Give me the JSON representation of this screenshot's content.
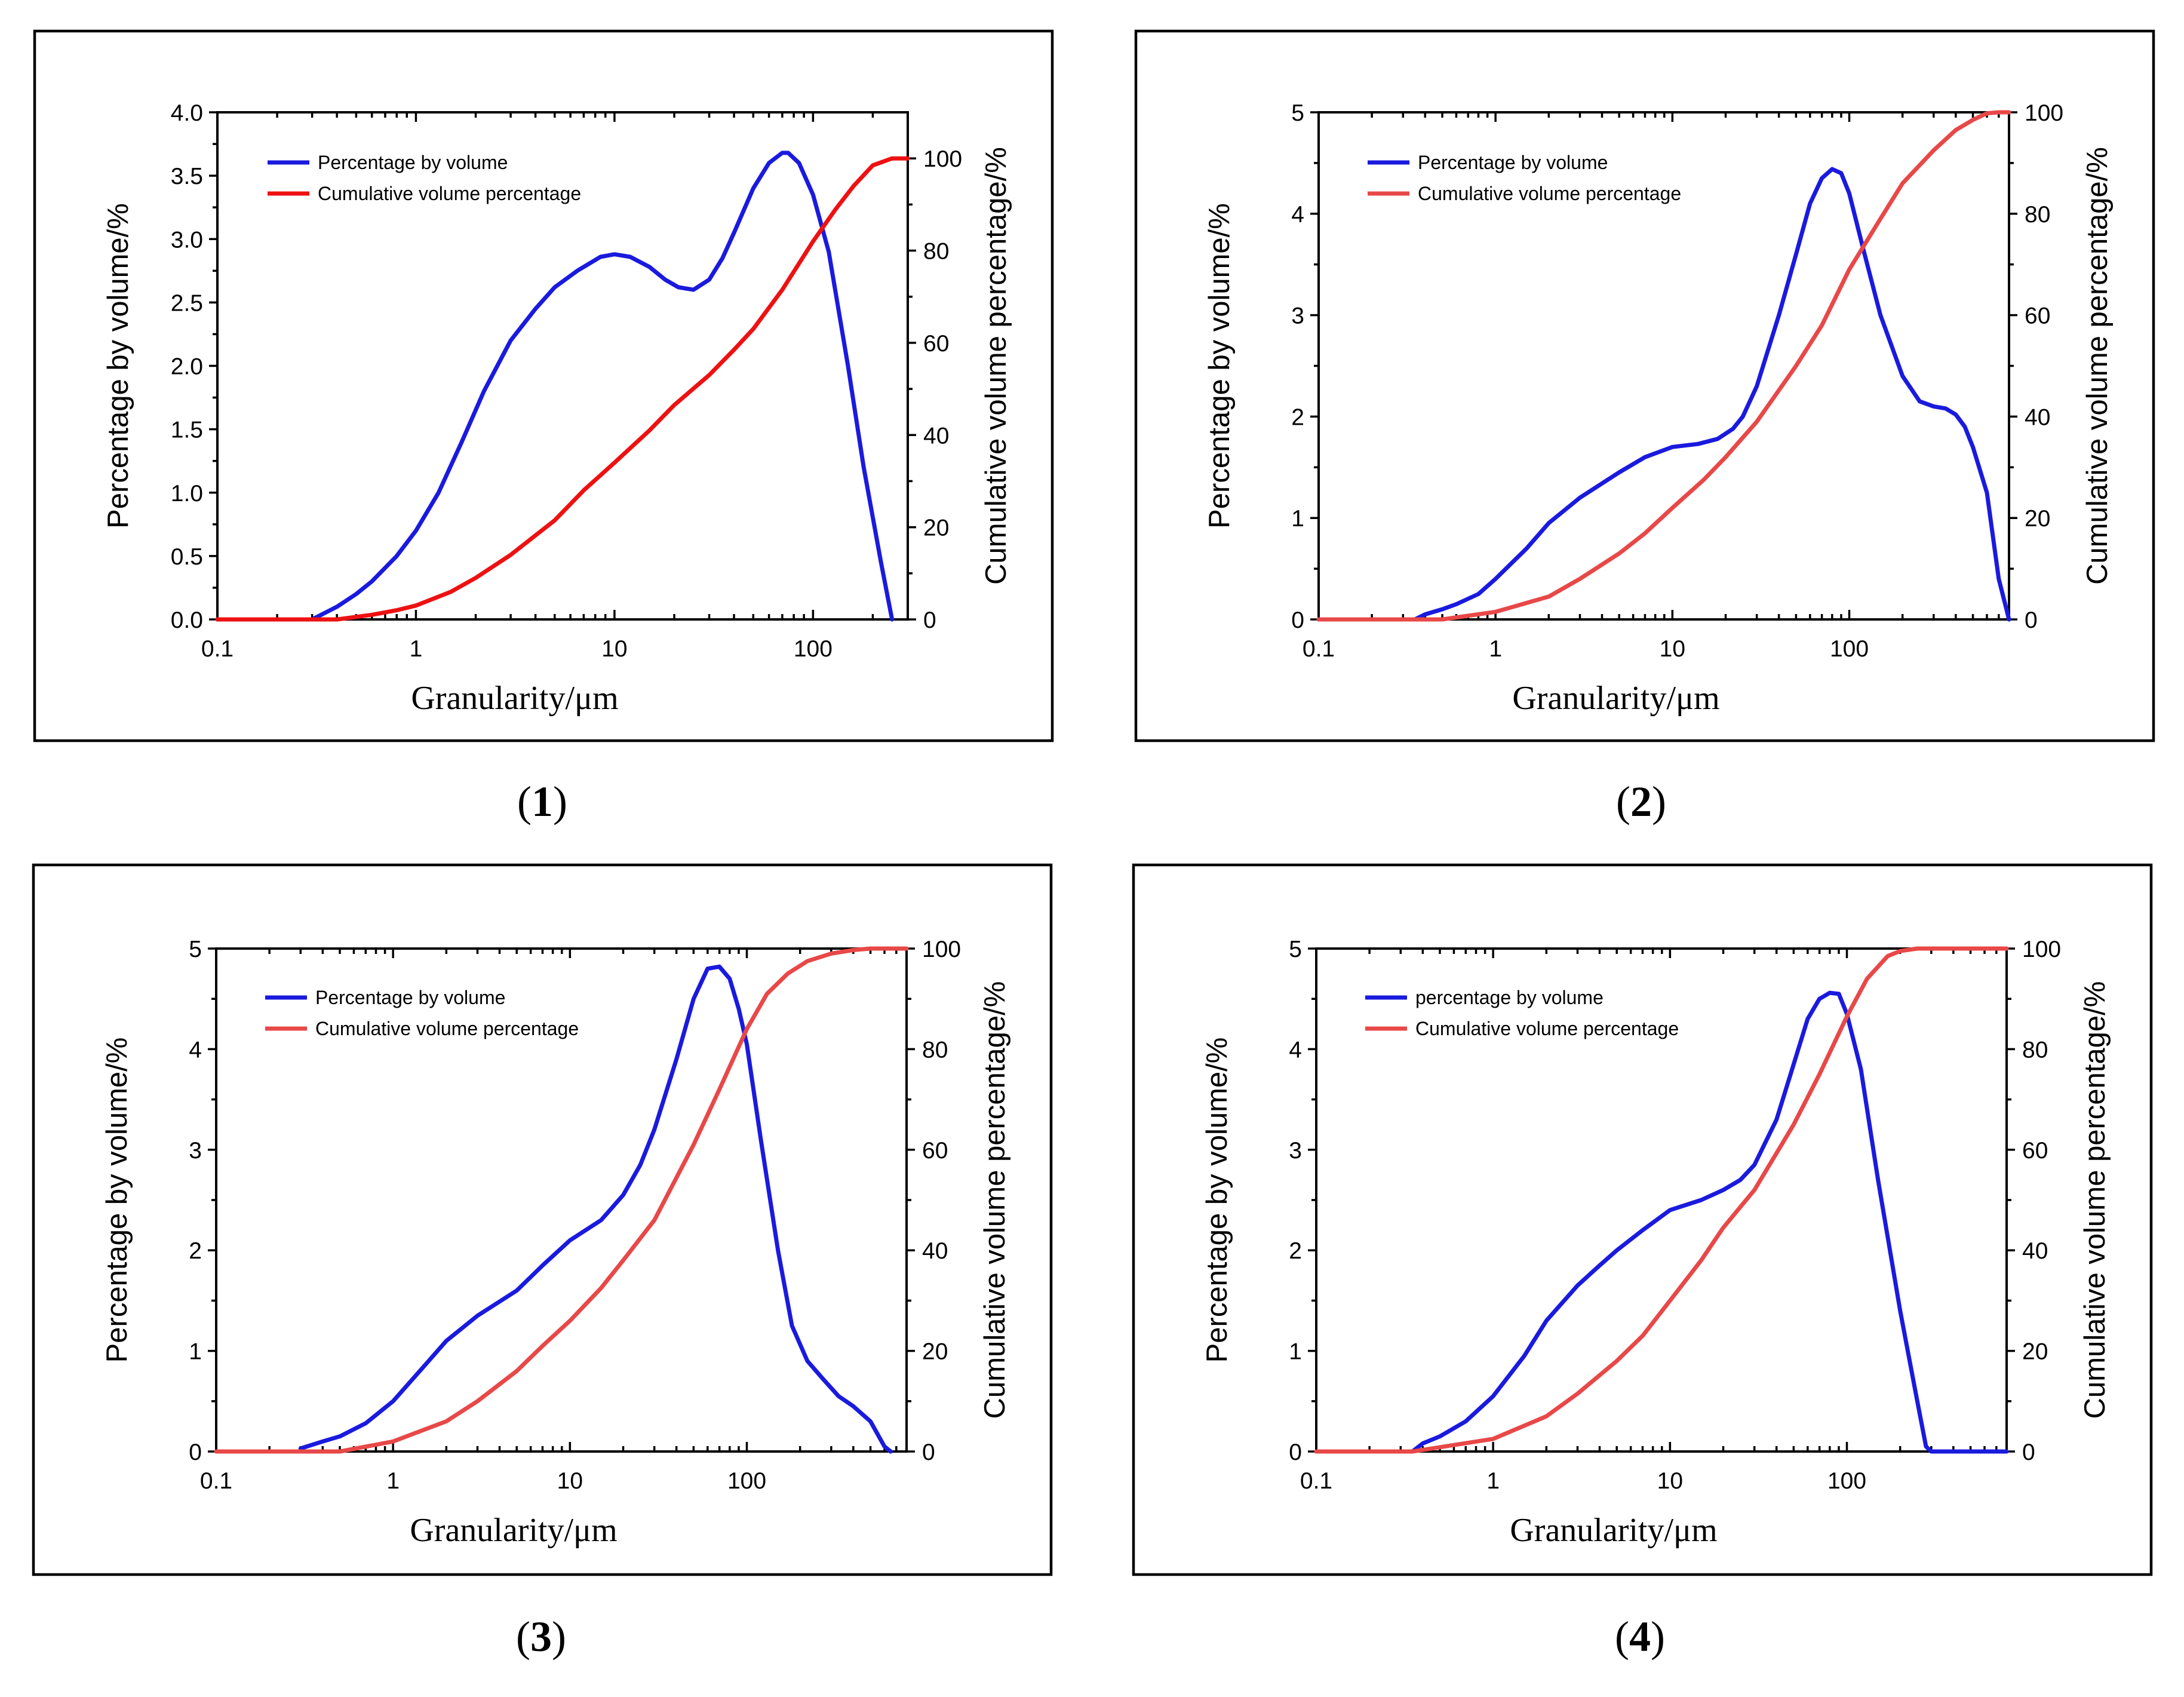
{
  "colors": {
    "blue": "#1a1adf",
    "red": "#ee1111",
    "light_red": "#e84848"
  },
  "chart_data": [
    {
      "caption_num": "1",
      "type": "line",
      "xlabel": "Granularity/μm",
      "ylabel_left": "Percentage by volume/%",
      "ylabel_right": "Cumulative volume percentage/%",
      "x_scale": "log",
      "xlim": [
        0.1,
        300
      ],
      "x_ticks": [
        0.1,
        1,
        10,
        100
      ],
      "x_tick_labels": [
        "0.1",
        "1",
        "10",
        "100"
      ],
      "ylim_left": [
        0,
        4.0
      ],
      "y_left_ticks": [
        0,
        0.5,
        1.0,
        1.5,
        2.0,
        2.5,
        3.0,
        3.5,
        4.0
      ],
      "y_left_tick_labels": [
        "0.0",
        "0.5",
        "1.0",
        "1.5",
        "2.0",
        "2.5",
        "3.0",
        "3.5",
        "4.0"
      ],
      "ylim_right": [
        0,
        110
      ],
      "y_right_ticks": [
        0,
        20,
        40,
        60,
        80,
        100
      ],
      "y_right_tick_labels": [
        "0",
        "20",
        "40",
        "60",
        "80",
        "100"
      ],
      "series": [
        {
          "name": "Percentage by volume",
          "color": "#1a1adf",
          "axis": "left",
          "x": [
            0.1,
            0.3,
            0.4,
            0.5,
            0.6,
            0.8,
            1,
            1.3,
            1.7,
            2.2,
            3,
            4,
            5,
            6.5,
            8.5,
            10,
            12,
            15,
            18,
            21,
            25,
            30,
            35,
            40,
            50,
            60,
            70,
            75,
            85,
            100,
            120,
            150,
            180,
            220,
            250
          ],
          "values": [
            0,
            0,
            0.1,
            0.2,
            0.3,
            0.5,
            0.7,
            1.0,
            1.4,
            1.8,
            2.2,
            2.45,
            2.62,
            2.75,
            2.86,
            2.88,
            2.86,
            2.78,
            2.68,
            2.62,
            2.6,
            2.68,
            2.85,
            3.05,
            3.4,
            3.6,
            3.68,
            3.68,
            3.6,
            3.35,
            2.9,
            2.0,
            1.2,
            0.45,
            0
          ]
        },
        {
          "name": "Cumulative volume percentage",
          "color": "#ee1111",
          "axis": "right",
          "x": [
            0.1,
            0.4,
            0.6,
            0.8,
            1,
            1.5,
            2,
            3,
            5,
            7,
            10,
            15,
            20,
            30,
            40,
            50,
            70,
            100,
            130,
            160,
            200,
            250,
            300
          ],
          "values": [
            0,
            0,
            1,
            2,
            3,
            6,
            9,
            14,
            21.5,
            28,
            34,
            41,
            46.5,
            53,
            58.5,
            63,
            71.5,
            82,
            89,
            94,
            98.5,
            100,
            100
          ]
        }
      ]
    },
    {
      "caption_num": "2",
      "type": "line",
      "xlabel": "Granularity/μm",
      "ylabel_left": "Percentage by volume/%",
      "ylabel_right": "Cumulative volume percentage/%",
      "x_scale": "log",
      "xlim": [
        0.1,
        800
      ],
      "x_ticks": [
        0.1,
        1,
        10,
        100
      ],
      "x_tick_labels": [
        "0.1",
        "1",
        "10",
        "100"
      ],
      "ylim_left": [
        0,
        5
      ],
      "y_left_ticks": [
        0,
        1,
        2,
        3,
        4,
        5
      ],
      "y_left_tick_labels": [
        "0",
        "1",
        "2",
        "3",
        "4",
        "5"
      ],
      "ylim_right": [
        0,
        100
      ],
      "y_right_ticks": [
        0,
        20,
        40,
        60,
        80,
        100
      ],
      "y_right_tick_labels": [
        "0",
        "20",
        "40",
        "60",
        "80",
        "100"
      ],
      "series": [
        {
          "name": "Percentage by volume",
          "color": "#1a1adf",
          "axis": "left",
          "x": [
            0.1,
            0.35,
            0.4,
            0.5,
            0.6,
            0.8,
            1,
            1.5,
            2,
            3,
            5,
            7,
            10,
            14,
            18,
            22,
            25,
            30,
            40,
            50,
            60,
            70,
            80,
            90,
            100,
            120,
            150,
            200,
            250,
            300,
            350,
            400,
            450,
            500,
            600,
            700,
            800
          ],
          "values": [
            0,
            0,
            0.05,
            0.1,
            0.15,
            0.25,
            0.4,
            0.7,
            0.95,
            1.2,
            1.45,
            1.6,
            1.7,
            1.73,
            1.78,
            1.88,
            2.0,
            2.3,
            3.0,
            3.6,
            4.1,
            4.35,
            4.44,
            4.4,
            4.2,
            3.65,
            3.0,
            2.4,
            2.15,
            2.1,
            2.08,
            2.02,
            1.9,
            1.7,
            1.25,
            0.4,
            0
          ]
        },
        {
          "name": "Cumulative volume percentage",
          "color": "#e84848",
          "axis": "right",
          "x": [
            0.1,
            0.5,
            1,
            2,
            3,
            5,
            7,
            10,
            15,
            20,
            30,
            50,
            70,
            100,
            150,
            200,
            300,
            400,
            500,
            600,
            700,
            800
          ],
          "values": [
            0,
            0,
            1.5,
            4.5,
            8,
            13,
            17,
            22,
            27.5,
            32,
            39,
            50,
            58,
            69,
            79,
            86,
            92.5,
            96.5,
            98.5,
            99.8,
            100,
            100
          ]
        }
      ]
    },
    {
      "caption_num": "3",
      "type": "line",
      "xlabel": "Granularity/μm",
      "ylabel_left": "Percentage by volume/%",
      "ylabel_right": "Cumulative volume percentage/%",
      "x_scale": "log",
      "xlim": [
        0.1,
        800
      ],
      "x_ticks": [
        0.1,
        1,
        10,
        100
      ],
      "x_tick_labels": [
        "0.1",
        "1",
        "10",
        "100"
      ],
      "ylim_left": [
        0,
        5
      ],
      "y_left_ticks": [
        0,
        1,
        2,
        3,
        4,
        5
      ],
      "y_left_tick_labels": [
        "0",
        "1",
        "2",
        "3",
        "4",
        "5"
      ],
      "ylim_right": [
        0,
        100
      ],
      "y_right_ticks": [
        0,
        20,
        40,
        60,
        80,
        100
      ],
      "y_right_tick_labels": [
        "0",
        "20",
        "40",
        "60",
        "80",
        "100"
      ],
      "series": [
        {
          "name": "Percentage by volume",
          "color": "#1a1adf",
          "axis": "left",
          "x": [
            0.3,
            0.4,
            0.5,
            0.7,
            1,
            1.5,
            2,
            3,
            5,
            7,
            10,
            15,
            20,
            25,
            30,
            40,
            50,
            60,
            70,
            80,
            90,
            100,
            120,
            150,
            180,
            220,
            270,
            330,
            400,
            500,
            600,
            650
          ],
          "values": [
            0.03,
            0.1,
            0.15,
            0.28,
            0.5,
            0.85,
            1.1,
            1.35,
            1.6,
            1.85,
            2.1,
            2.3,
            2.55,
            2.85,
            3.2,
            3.9,
            4.5,
            4.8,
            4.82,
            4.7,
            4.4,
            4.05,
            3.1,
            2.0,
            1.25,
            0.9,
            0.72,
            0.55,
            0.45,
            0.3,
            0.05,
            0
          ]
        },
        {
          "name": "Cumulative volume percentage",
          "color": "#e84848",
          "axis": "right",
          "x": [
            0.1,
            0.5,
            1,
            2,
            3,
            5,
            7,
            10,
            15,
            20,
            30,
            50,
            70,
            100,
            130,
            170,
            220,
            300,
            400,
            500,
            600,
            700,
            800
          ],
          "values": [
            0,
            0,
            2,
            6,
            10,
            16,
            21,
            26,
            32.5,
            38,
            46,
            61,
            72,
            84,
            91,
            95,
            97.5,
            99,
            99.7,
            100,
            100,
            100,
            100
          ]
        }
      ]
    },
    {
      "caption_num": "4",
      "type": "line",
      "xlabel": "Granularity/μm",
      "ylabel_left": "Percentage by volume/%",
      "ylabel_right": "Cumulative volume percentage/%",
      "x_scale": "log",
      "xlim": [
        0.1,
        800
      ],
      "x_ticks": [
        0.1,
        1,
        10,
        100
      ],
      "x_tick_labels": [
        "0.1",
        "1",
        "10",
        "100"
      ],
      "ylim_left": [
        0,
        5
      ],
      "y_left_ticks": [
        0,
        1,
        2,
        3,
        4,
        5
      ],
      "y_left_tick_labels": [
        "0",
        "1",
        "2",
        "3",
        "4",
        "5"
      ],
      "ylim_right": [
        0,
        100
      ],
      "y_right_ticks": [
        0,
        20,
        40,
        60,
        80,
        100
      ],
      "y_right_tick_labels": [
        "0",
        "20",
        "40",
        "60",
        "80",
        "100"
      ],
      "series": [
        {
          "name": "percentage by volume",
          "color": "#1a1adf",
          "axis": "left",
          "x": [
            0.1,
            0.35,
            0.4,
            0.5,
            0.7,
            1,
            1.5,
            2,
            3,
            4,
            5,
            7,
            10,
            15,
            20,
            25,
            30,
            40,
            50,
            60,
            70,
            80,
            90,
            100,
            120,
            150,
            200,
            250,
            280,
            300,
            400,
            500,
            800
          ],
          "values": [
            0,
            0,
            0.08,
            0.15,
            0.3,
            0.55,
            0.95,
            1.3,
            1.65,
            1.85,
            2.0,
            2.2,
            2.4,
            2.5,
            2.6,
            2.7,
            2.85,
            3.3,
            3.85,
            4.3,
            4.5,
            4.56,
            4.55,
            4.35,
            3.8,
            2.7,
            1.4,
            0.5,
            0.05,
            0,
            0,
            0,
            0
          ]
        },
        {
          "name": "Cumulative volume percentage",
          "color": "#e84848",
          "axis": "right",
          "x": [
            0.1,
            0.35,
            1,
            2,
            3,
            5,
            7,
            10,
            15,
            20,
            30,
            50,
            70,
            100,
            130,
            170,
            200,
            250,
            300,
            400,
            500,
            800
          ],
          "values": [
            0,
            0,
            2.5,
            7,
            11.5,
            18,
            23,
            30,
            38,
            44.5,
            52,
            65,
            75,
            86.5,
            94,
            98.5,
            99.5,
            100,
            100,
            100,
            100,
            100
          ]
        }
      ]
    }
  ]
}
